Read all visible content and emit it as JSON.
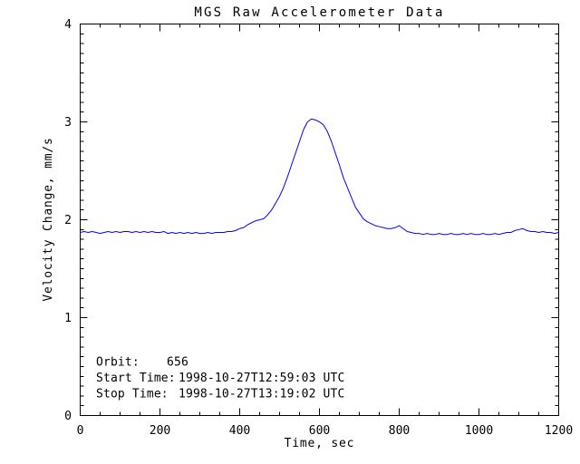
{
  "chart_data": {
    "type": "line",
    "title": "MGS Raw Accelerometer Data",
    "xlabel": "Time, sec",
    "ylabel": "Velocity Change, mm/s",
    "xlim": [
      0,
      1200
    ],
    "ylim": [
      0,
      4
    ],
    "x_ticks": [
      0,
      200,
      400,
      600,
      800,
      1000,
      1200
    ],
    "y_ticks": [
      0,
      1,
      2,
      3,
      4
    ],
    "x_minor_tick_interval": 50,
    "y_minor_tick_interval": 0.1,
    "grid": false,
    "legend": "none",
    "line_color": "#0000ff",
    "axis_color": "#000000",
    "background_color": "#ffffff",
    "x": [
      0,
      10,
      20,
      30,
      40,
      50,
      60,
      70,
      80,
      90,
      100,
      110,
      120,
      130,
      140,
      150,
      160,
      170,
      180,
      190,
      200,
      210,
      220,
      230,
      240,
      250,
      260,
      270,
      280,
      290,
      300,
      310,
      320,
      330,
      340,
      350,
      360,
      370,
      380,
      390,
      400,
      410,
      420,
      430,
      440,
      450,
      460,
      470,
      480,
      490,
      500,
      510,
      520,
      530,
      540,
      550,
      560,
      570,
      580,
      590,
      600,
      610,
      620,
      630,
      640,
      650,
      660,
      670,
      680,
      690,
      700,
      710,
      720,
      730,
      740,
      750,
      760,
      770,
      780,
      790,
      800,
      810,
      820,
      830,
      840,
      850,
      860,
      870,
      880,
      890,
      900,
      910,
      920,
      930,
      940,
      950,
      960,
      970,
      980,
      990,
      1000,
      1010,
      1020,
      1030,
      1040,
      1050,
      1060,
      1070,
      1080,
      1090,
      1100,
      1110,
      1120,
      1130,
      1140,
      1150,
      1160,
      1170,
      1180,
      1190,
      1200
    ],
    "y": [
      1.87,
      1.88,
      1.87,
      1.88,
      1.87,
      1.86,
      1.87,
      1.88,
      1.87,
      1.88,
      1.87,
      1.88,
      1.88,
      1.87,
      1.88,
      1.87,
      1.88,
      1.87,
      1.88,
      1.87,
      1.87,
      1.88,
      1.86,
      1.87,
      1.86,
      1.87,
      1.86,
      1.87,
      1.86,
      1.87,
      1.86,
      1.86,
      1.87,
      1.86,
      1.87,
      1.87,
      1.87,
      1.88,
      1.88,
      1.89,
      1.91,
      1.92,
      1.95,
      1.97,
      1.99,
      2.0,
      2.01,
      2.05,
      2.1,
      2.17,
      2.24,
      2.33,
      2.44,
      2.56,
      2.68,
      2.8,
      2.92,
      3.0,
      3.03,
      3.02,
      3.0,
      2.97,
      2.9,
      2.8,
      2.68,
      2.56,
      2.43,
      2.33,
      2.23,
      2.13,
      2.07,
      2.01,
      1.98,
      1.96,
      1.94,
      1.93,
      1.92,
      1.91,
      1.91,
      1.92,
      1.94,
      1.91,
      1.88,
      1.87,
      1.86,
      1.86,
      1.85,
      1.86,
      1.85,
      1.85,
      1.86,
      1.85,
      1.85,
      1.86,
      1.85,
      1.85,
      1.86,
      1.85,
      1.86,
      1.85,
      1.85,
      1.86,
      1.85,
      1.85,
      1.86,
      1.85,
      1.86,
      1.87,
      1.87,
      1.89,
      1.9,
      1.91,
      1.89,
      1.88,
      1.88,
      1.87,
      1.88,
      1.87,
      1.87,
      1.86,
      1.87
    ],
    "annotations": {
      "orbit_label": "Orbit:",
      "orbit_value": "656",
      "start_label": "Start Time:",
      "start_value": "1998-10-27T12:59:03 UTC",
      "stop_label": "Stop Time:",
      "stop_value": "1998-10-27T13:19:02 UTC"
    }
  }
}
